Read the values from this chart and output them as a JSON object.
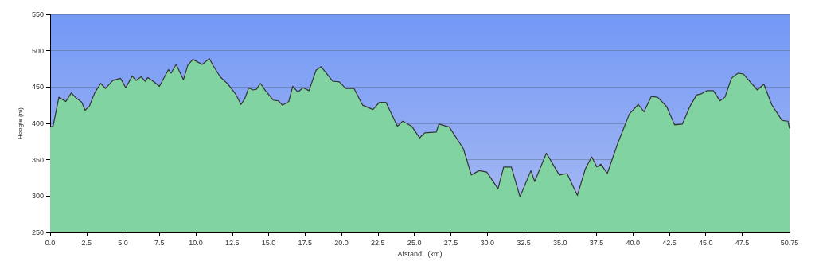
{
  "chart_data": {
    "type": "area",
    "xlabel": "Afstand   (km)",
    "ylabel": "Hoogte (m)",
    "xlim": [
      0,
      50.75
    ],
    "ylim": [
      250,
      550
    ],
    "xticks": [
      {
        "value": 0,
        "label": "0.0"
      },
      {
        "value": 2.5,
        "label": "2.5"
      },
      {
        "value": 5,
        "label": "5.0"
      },
      {
        "value": 7.5,
        "label": "7.5"
      },
      {
        "value": 10,
        "label": "10.0"
      },
      {
        "value": 12.5,
        "label": "12.5"
      },
      {
        "value": 15,
        "label": "15.0"
      },
      {
        "value": 17.5,
        "label": "17.5"
      },
      {
        "value": 20,
        "label": "20.0"
      },
      {
        "value": 22.5,
        "label": "22.5"
      },
      {
        "value": 25,
        "label": "25.0"
      },
      {
        "value": 27.5,
        "label": "27.5"
      },
      {
        "value": 30,
        "label": "30.0"
      },
      {
        "value": 32.5,
        "label": "32.5"
      },
      {
        "value": 35,
        "label": "35.0"
      },
      {
        "value": 37.5,
        "label": "37.5"
      },
      {
        "value": 40,
        "label": "40.0"
      },
      {
        "value": 42.5,
        "label": "42.5"
      },
      {
        "value": 45,
        "label": "45.0"
      },
      {
        "value": 47.5,
        "label": "47.5"
      },
      {
        "value": 50.75,
        "label": "50.75"
      }
    ],
    "yticks": [
      250,
      300,
      350,
      400,
      450,
      500,
      550
    ],
    "grid": "y",
    "series": [
      {
        "color": "#82d3a2",
        "x": [
          0,
          0.2,
          0.6,
          1.07,
          1.46,
          1.72,
          2.17,
          2.4,
          2.7,
          3.06,
          3.47,
          3.8,
          4.3,
          4.83,
          5.19,
          5.63,
          5.9,
          6.25,
          6.52,
          6.7,
          7.14,
          7.5,
          8.12,
          8.3,
          8.65,
          9.15,
          9.45,
          9.8,
          10.43,
          10.93,
          11.23,
          11.67,
          12.2,
          12.74,
          13.1,
          13.36,
          13.63,
          13.9,
          14.16,
          14.43,
          14.78,
          15.32,
          15.67,
          15.94,
          16.38,
          16.65,
          17.0,
          17.36,
          17.77,
          18.25,
          18.6,
          19.4,
          19.85,
          20.29,
          20.86,
          21.45,
          22.16,
          22.6,
          23.05,
          23.84,
          24.2,
          24.82,
          25.36,
          25.71,
          26.5,
          26.69,
          27.4,
          28.37,
          28.91,
          29.44,
          29.97,
          30.74,
          31.13,
          31.66,
          32.25,
          33.0,
          33.26,
          34.06,
          34.95,
          35.48,
          36.19,
          36.73,
          37.17,
          37.53,
          37.8,
          38.24,
          38.95,
          39.76,
          40.37,
          40.76,
          41.26,
          41.7,
          42.32,
          42.86,
          43.39,
          43.93,
          44.37,
          44.73,
          45.08,
          45.52,
          45.97,
          46.32,
          46.76,
          47.21,
          47.57,
          47.92,
          48.54,
          48.99,
          49.52,
          50.23,
          50.64,
          50.75
        ],
        "values": [
          395,
          396,
          436,
          430,
          442,
          436,
          429,
          418,
          424,
          442,
          455,
          448,
          459,
          462,
          449,
          465,
          459,
          464,
          458,
          463,
          457,
          451,
          474,
          469,
          481,
          460,
          480,
          488,
          481,
          489,
          478,
          464,
          454,
          440,
          426,
          434,
          449,
          446,
          447,
          455,
          445,
          432,
          431,
          425,
          430,
          451,
          443,
          449,
          445,
          473,
          478,
          458,
          457,
          448,
          448,
          425,
          419,
          429,
          429,
          396,
          403,
          396,
          380,
          387,
          388,
          399,
          395,
          365,
          329,
          335,
          333,
          310,
          340,
          340,
          299,
          335,
          320,
          359,
          329,
          331,
          301,
          337,
          354,
          340,
          344,
          331,
          372,
          413,
          426,
          416,
          437,
          436,
          423,
          398,
          399,
          424,
          439,
          441,
          445,
          445,
          431,
          436,
          462,
          469,
          468,
          460,
          446,
          454,
          426,
          404,
          403,
          393
        ]
      }
    ]
  }
}
